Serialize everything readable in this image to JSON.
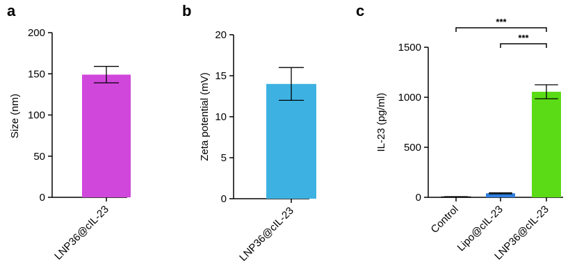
{
  "chart_data": [
    {
      "panel": "a",
      "type": "bar",
      "categories": [
        "LNP36@cIL-23"
      ],
      "values": [
        149
      ],
      "errors": [
        10
      ],
      "ylabel": "Size (nm)",
      "ylim": [
        0,
        200
      ],
      "yticks": [
        0,
        50,
        100,
        150,
        200
      ],
      "colors": [
        "#D047DB"
      ]
    },
    {
      "panel": "b",
      "type": "bar",
      "categories": [
        "LNP36@cIL-23"
      ],
      "values": [
        14
      ],
      "errors": [
        2
      ],
      "ylabel": "Zeta potential (mV)",
      "ylim": [
        0,
        20
      ],
      "yticks": [
        0,
        5,
        10,
        15,
        20
      ],
      "colors": [
        "#3DB2E2"
      ]
    },
    {
      "panel": "c",
      "type": "bar",
      "categories": [
        "Control",
        "Lipo@cIL-23",
        "LNP36@cIL-23"
      ],
      "values": [
        5,
        40,
        1055
      ],
      "errors": [
        2,
        5,
        70
      ],
      "ylabel": "IL-23 (pg/ml)",
      "ylim": [
        0,
        1500
      ],
      "yticks": [
        0,
        500,
        1000,
        1500
      ],
      "colors": [
        "#FFFFFF",
        "#2F7FE0",
        "#5ADB16"
      ],
      "significance": [
        {
          "from": "Control",
          "to": "LNP36@cIL-23",
          "label": "***"
        },
        {
          "from": "Lipo@cIL-23",
          "to": "LNP36@cIL-23",
          "label": "***"
        }
      ]
    }
  ]
}
